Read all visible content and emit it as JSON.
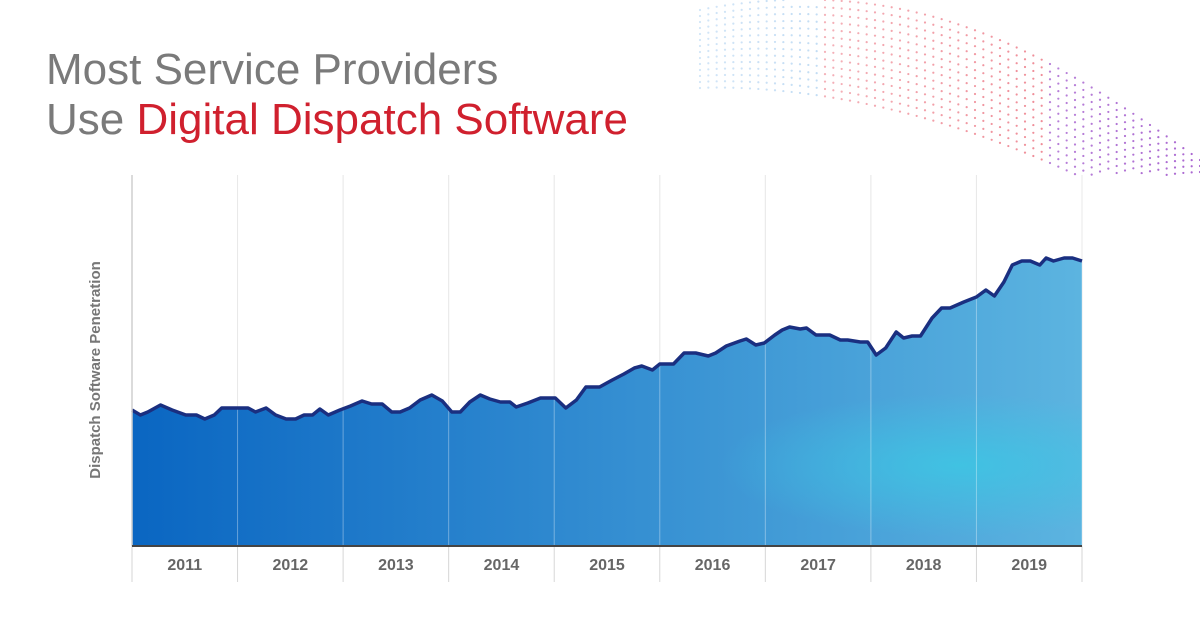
{
  "chart_data": {
    "type": "area",
    "title": {
      "line1": "Most Service Providers",
      "line2": "Use",
      "highlight": "Digital Dispatch Software"
    },
    "y_label": "Dispatch Software Penetration",
    "categories": [
      "2011",
      "2012",
      "2013",
      "2014",
      "2015",
      "2016",
      "2017",
      "2018",
      "2019"
    ],
    "xlim": [
      2011,
      2020
    ],
    "xticks": [
      2011,
      2012,
      2013,
      2014,
      2015,
      2016,
      2017,
      2018,
      2019,
      2020
    ],
    "ylim": [
      0,
      371
    ],
    "grid": true,
    "color": "#1a2f80",
    "fill_colors": [
      "#0a66c2",
      "#5cb4e0"
    ],
    "series": [
      {
        "x": [
          2011.0,
          2011.08,
          2011.15,
          2011.27,
          2011.38,
          2011.51,
          2011.61,
          2011.69,
          2011.78,
          2011.85,
          2011.99,
          2012.1,
          2012.17,
          2012.27,
          2012.36,
          2012.46,
          2012.55,
          2012.63,
          2012.71,
          2012.78,
          2012.86,
          2012.97,
          2013.07,
          2013.18,
          2013.27,
          2013.37,
          2013.46,
          2013.54,
          2013.63,
          2013.73,
          2013.84,
          2013.94,
          2014.03,
          2014.11,
          2014.2,
          2014.3,
          2014.39,
          2014.49,
          2014.58,
          2014.64,
          2014.75,
          2014.87,
          2015.01,
          2015.11,
          2015.21,
          2015.3,
          2015.43,
          2015.55,
          2015.66,
          2015.76,
          2015.83,
          2015.93,
          2016.0,
          2016.13,
          2016.23,
          2016.34,
          2016.46,
          2016.53,
          2016.63,
          2016.76,
          2016.82,
          2016.91,
          2016.99,
          2017.09,
          2017.16,
          2017.23,
          2017.33,
          2017.39,
          2017.48,
          2017.61,
          2017.71,
          2017.78,
          2017.9,
          2017.97,
          2018.05,
          2018.14,
          2018.24,
          2018.31,
          2018.39,
          2018.47,
          2018.58,
          2018.67,
          2018.75,
          2018.88,
          2019.0,
          2019.09,
          2019.17,
          2019.26,
          2019.34,
          2019.43,
          2019.51,
          2019.6,
          2019.66,
          2019.73,
          2019.83,
          2019.91,
          2020.0
        ],
        "values": [
          136,
          131,
          134,
          141,
          136,
          131,
          131,
          127,
          131,
          138,
          138,
          138,
          134,
          138,
          131,
          127,
          127,
          131,
          131,
          137,
          131,
          136,
          140,
          145,
          142,
          142,
          134,
          134,
          138,
          146,
          151,
          145,
          134,
          134,
          144,
          151,
          147,
          144,
          144,
          139,
          143,
          148,
          148,
          138,
          146,
          159,
          159,
          166,
          172,
          178,
          180,
          176,
          182,
          182,
          193,
          193,
          190,
          193,
          200,
          205,
          207,
          201,
          203,
          211,
          216,
          219,
          217,
          218,
          211,
          211,
          206,
          206,
          204,
          204,
          191,
          198,
          214,
          208,
          210,
          210,
          228,
          238,
          238,
          244,
          249,
          256,
          250,
          264,
          281,
          285,
          285,
          281,
          288,
          285,
          288,
          288,
          285
        ]
      }
    ]
  }
}
